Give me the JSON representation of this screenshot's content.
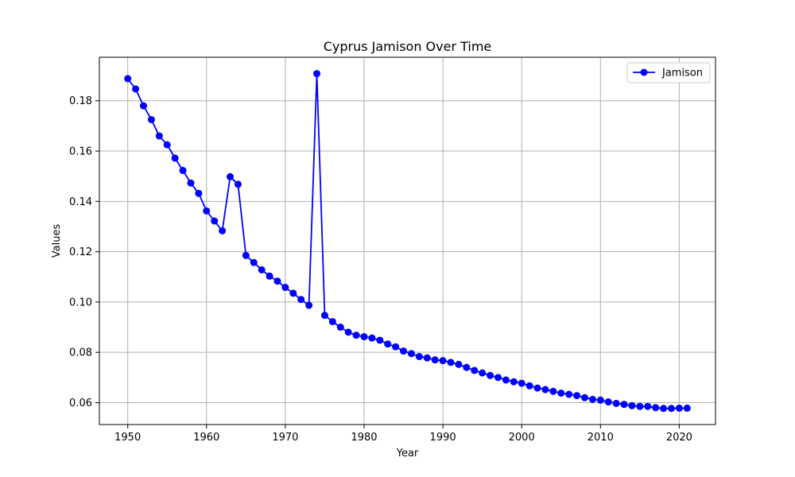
{
  "chart_data": {
    "type": "line",
    "title": "Cyprus Jamison Over Time",
    "xlabel": "Year",
    "ylabel": "Values",
    "xlim": [
      1946.4,
      2024.6
    ],
    "ylim": [
      0.0513,
      0.1973
    ],
    "xticks": [
      1950,
      1960,
      1970,
      1980,
      1990,
      2000,
      2010,
      2020
    ],
    "yticks": [
      0.06,
      0.08,
      0.1,
      0.12,
      0.14,
      0.16,
      0.18
    ],
    "grid": true,
    "legend_position": "top-right",
    "colors": {
      "series": "#0000ff",
      "grid": "#b0b0b0"
    },
    "series": [
      {
        "name": "Jamison",
        "x": [
          1950,
          1951,
          1952,
          1953,
          1954,
          1955,
          1956,
          1957,
          1958,
          1959,
          1960,
          1961,
          1962,
          1963,
          1964,
          1965,
          1966,
          1967,
          1968,
          1969,
          1970,
          1971,
          1972,
          1973,
          1974,
          1975,
          1976,
          1977,
          1978,
          1979,
          1980,
          1981,
          1982,
          1983,
          1984,
          1985,
          1986,
          1987,
          1988,
          1989,
          1990,
          1991,
          1992,
          1993,
          1994,
          1995,
          1996,
          1997,
          1998,
          1999,
          2000,
          2001,
          2002,
          2003,
          2004,
          2005,
          2006,
          2007,
          2008,
          2009,
          2010,
          2011,
          2012,
          2013,
          2014,
          2015,
          2016,
          2017,
          2018,
          2019,
          2020,
          2021
        ],
        "y": [
          0.1888,
          0.1847,
          0.178,
          0.1725,
          0.166,
          0.1625,
          0.1572,
          0.1523,
          0.1473,
          0.1432,
          0.1362,
          0.1322,
          0.1283,
          0.1498,
          0.1468,
          0.1185,
          0.1157,
          0.1128,
          0.1103,
          0.1083,
          0.1058,
          0.1035,
          0.101,
          0.0987,
          0.1908,
          0.0947,
          0.0922,
          0.09,
          0.088,
          0.0868,
          0.0862,
          0.0857,
          0.0848,
          0.0833,
          0.0822,
          0.0805,
          0.0795,
          0.0783,
          0.0778,
          0.077,
          0.0767,
          0.076,
          0.0752,
          0.074,
          0.0728,
          0.0718,
          0.0708,
          0.07,
          0.069,
          0.0683,
          0.0677,
          0.0667,
          0.0658,
          0.0652,
          0.0645,
          0.0638,
          0.0633,
          0.0628,
          0.062,
          0.0613,
          0.061,
          0.0603,
          0.0597,
          0.0593,
          0.0588,
          0.0585,
          0.0585,
          0.058,
          0.0577,
          0.0577,
          0.0578,
          0.0578
        ]
      }
    ]
  }
}
